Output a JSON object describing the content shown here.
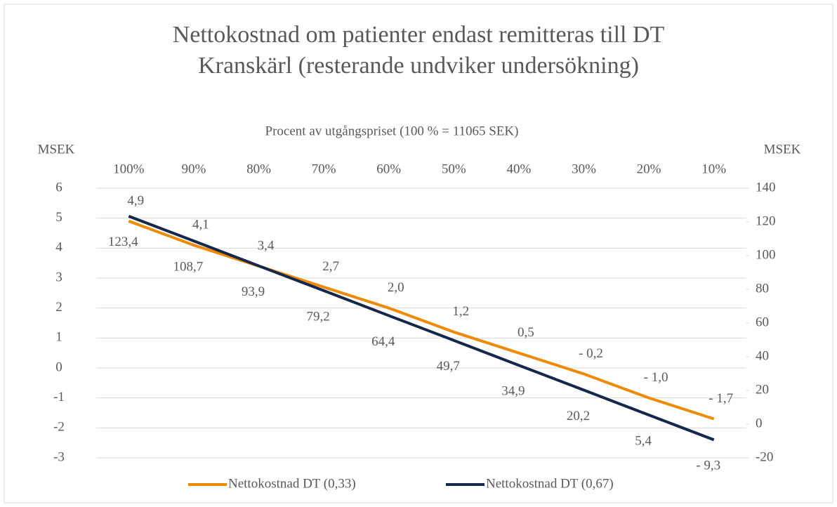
{
  "chart_data": {
    "type": "line",
    "title": "Nettokostnad om patienter endast remitteras till DT Kranskärl (resterande undviker undersökning)",
    "x_label": "Procent av utgångspriset (100 % = 11065 SEK)",
    "y_label": "MSEK",
    "y2_label": "MSEK",
    "categories": [
      "100%",
      "90%",
      "80%",
      "70%",
      "60%",
      "50%",
      "40%",
      "30%",
      "20%",
      "10%"
    ],
    "series": [
      {
        "name": "Nettokostnad DT (0,33)",
        "color": "#ee8a0a",
        "values": [
          4.9,
          4.1,
          3.4,
          2.7,
          2.0,
          1.2,
          0.5,
          -0.2,
          -1.0,
          -1.7
        ],
        "value_labels": [
          "4,9",
          "4,1",
          "3,4",
          "2,7",
          "2,0",
          "1,2",
          "0,5",
          "- 0,2",
          "- 1,0",
          "- 1,7"
        ]
      },
      {
        "name": "Nettokostnad DT (0,67)",
        "color": "#15284b",
        "axis": "y2",
        "values": [
          123.4,
          108.7,
          93.9,
          79.2,
          64.4,
          49.7,
          34.9,
          20.2,
          5.4,
          -9.3
        ],
        "value_labels": [
          "123,4",
          "108,7",
          "93,9",
          "79,2",
          "64,4",
          "49,7",
          "34,9",
          "20,2",
          "5,4",
          "- 9,3"
        ]
      }
    ],
    "ylim": [
      -3,
      6
    ],
    "yticks": [
      -3,
      -2,
      -1,
      0,
      1,
      2,
      3,
      4,
      5,
      6
    ],
    "y2lim": [
      -20,
      140
    ],
    "y2ticks": [
      -20,
      0,
      20,
      40,
      60,
      80,
      100,
      120,
      140
    ],
    "grid": true,
    "legend": "bottom"
  }
}
